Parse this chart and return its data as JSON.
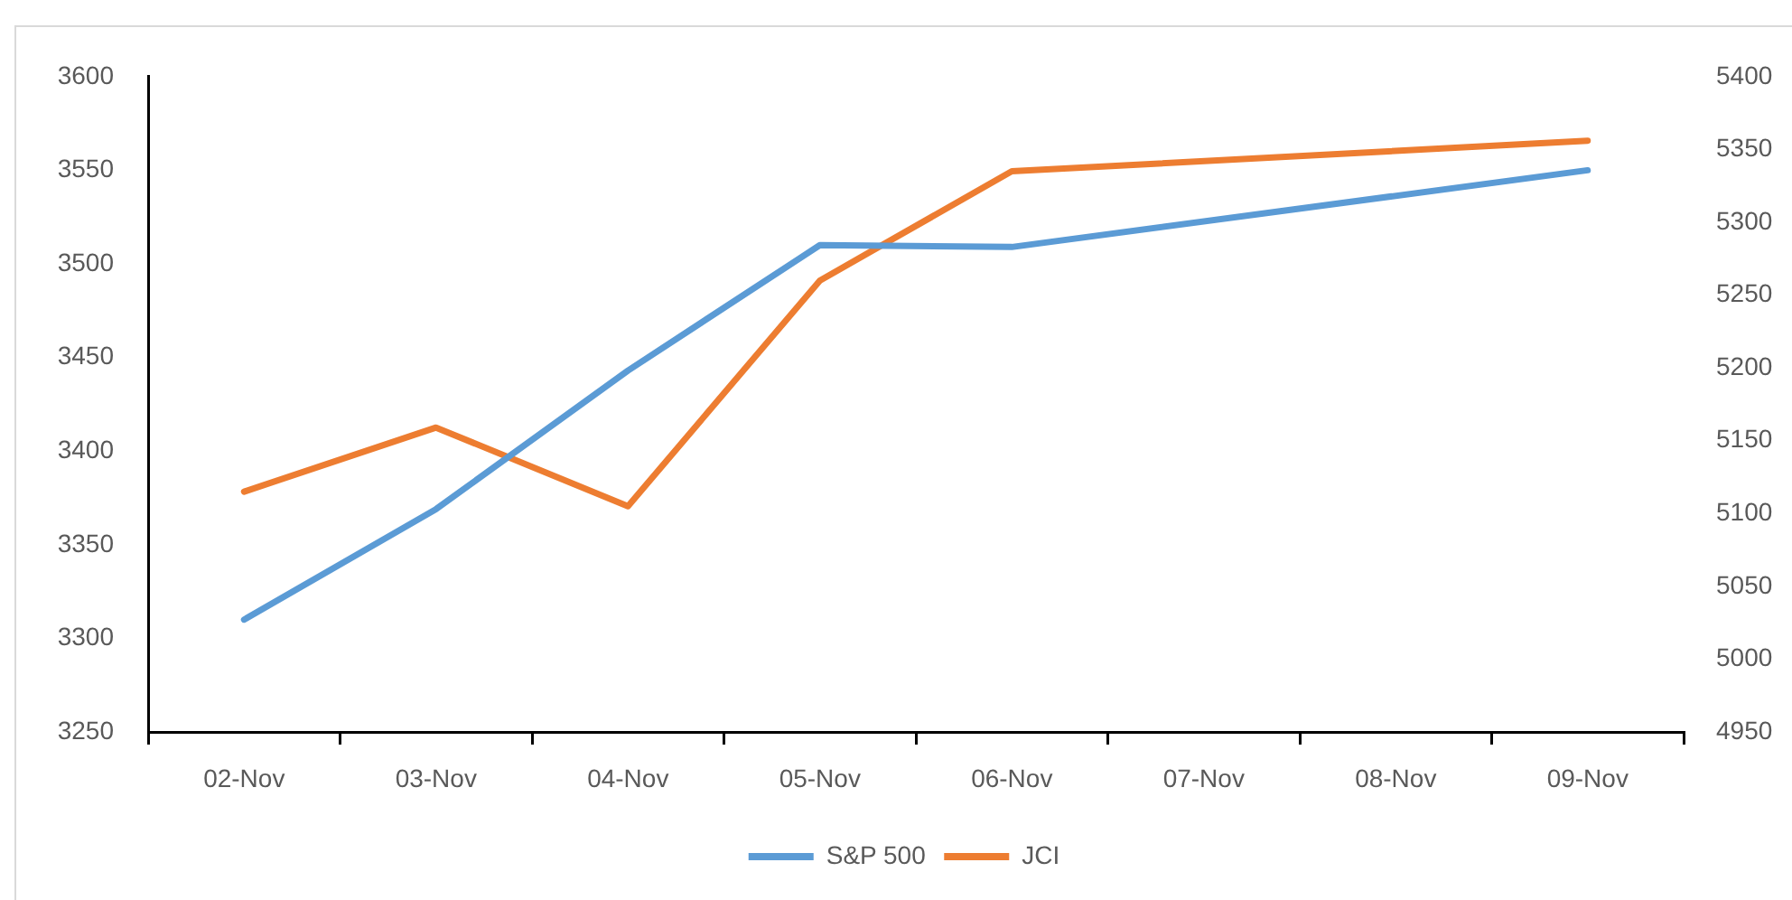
{
  "chart_data": {
    "type": "line",
    "categories": [
      "02-Nov",
      "03-Nov",
      "04-Nov",
      "05-Nov",
      "06-Nov",
      "07-Nov",
      "08-Nov",
      "09-Nov"
    ],
    "series": [
      {
        "name": "S&P 500",
        "color": "#5b9bd5",
        "values": [
          3310,
          3369,
          3443,
          3510,
          3509,
          null,
          null,
          3550
        ]
      },
      {
        "name": "JCI",
        "color": "#ed7d31",
        "axis": "y2",
        "values": [
          5115,
          5159,
          5105,
          5260,
          5335,
          null,
          null,
          5356
        ]
      }
    ],
    "ylim": [
      3250,
      3600
    ],
    "yticks": [
      3250,
      3300,
      3350,
      3400,
      3450,
      3500,
      3550,
      3600
    ],
    "y2lim": [
      4950,
      5400
    ],
    "y2ticks": [
      4950,
      5000,
      5050,
      5100,
      5150,
      5200,
      5250,
      5300,
      5350,
      5400
    ],
    "legend": "bottom",
    "marker": "none",
    "line_style": "solid"
  }
}
